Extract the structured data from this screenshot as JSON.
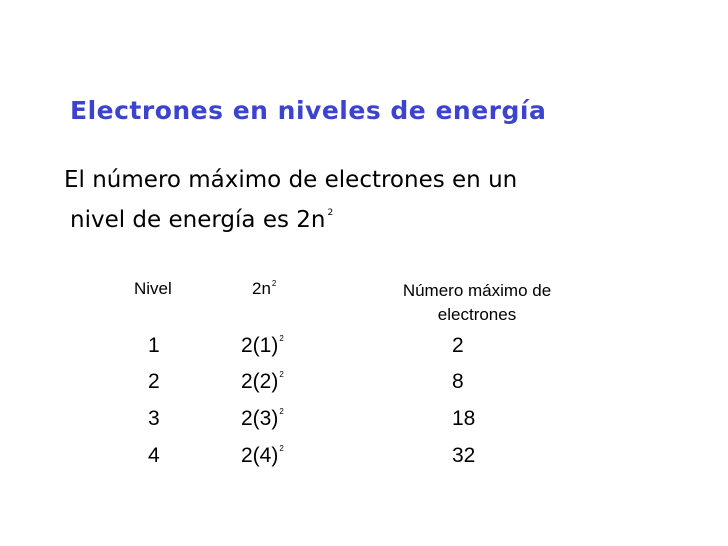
{
  "slide": {
    "title": "Electrones en niveles de energía",
    "line1": "El número máximo de electrones en un",
    "line2": "nivel de energía es 2n",
    "line2_sup": "2"
  },
  "table": {
    "headers": {
      "nivel": "Nivel",
      "formula_base": "2n",
      "formula_sup": "2",
      "max": "Número máximo de electrones"
    },
    "rows": [
      {
        "nivel": "1",
        "expr": "2(1)",
        "sup": "2",
        "max": "2"
      },
      {
        "nivel": "2",
        "expr": "2(2)",
        "sup": "2",
        "max": "8"
      },
      {
        "nivel": "3",
        "expr": "2(3)",
        "sup": "2",
        "max": "18"
      },
      {
        "nivel": "4",
        "expr": "2(4)",
        "sup": "2",
        "max": "32"
      }
    ]
  },
  "colors": {
    "title": "#3b43cf",
    "text": "#000000",
    "background": "#ffffff"
  }
}
